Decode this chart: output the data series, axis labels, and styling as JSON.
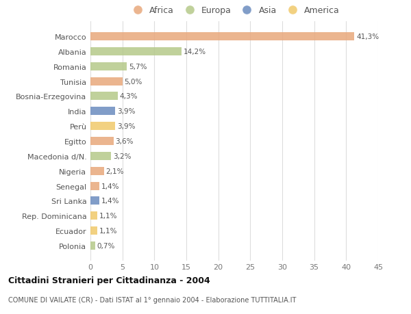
{
  "countries": [
    "Marocco",
    "Albania",
    "Romania",
    "Tunisia",
    "Bosnia-Erzegovina",
    "India",
    "Perù",
    "Egitto",
    "Macedonia d/N.",
    "Nigeria",
    "Senegal",
    "Sri Lanka",
    "Rep. Dominicana",
    "Ecuador",
    "Polonia"
  ],
  "values": [
    41.3,
    14.2,
    5.7,
    5.0,
    4.3,
    3.9,
    3.9,
    3.6,
    3.2,
    2.1,
    1.4,
    1.4,
    1.1,
    1.1,
    0.7
  ],
  "labels": [
    "41,3%",
    "14,2%",
    "5,7%",
    "5,0%",
    "4,3%",
    "3,9%",
    "3,9%",
    "3,6%",
    "3,2%",
    "2,1%",
    "1,4%",
    "1,4%",
    "1,1%",
    "1,1%",
    "0,7%"
  ],
  "continents": [
    "Africa",
    "Europa",
    "Europa",
    "Africa",
    "Europa",
    "Asia",
    "America",
    "Africa",
    "Europa",
    "Africa",
    "Africa",
    "Asia",
    "America",
    "America",
    "Europa"
  ],
  "colors": {
    "Africa": "#E8A87C",
    "Europa": "#B5C98A",
    "Asia": "#6B8CBF",
    "America": "#F0C96B"
  },
  "legend_order": [
    "Africa",
    "Europa",
    "Asia",
    "America"
  ],
  "xlim": [
    0,
    45
  ],
  "xticks": [
    0,
    5,
    10,
    15,
    20,
    25,
    30,
    35,
    40,
    45
  ],
  "title": "Cittadini Stranieri per Cittadinanza - 2004",
  "subtitle": "COMUNE DI VAILATE (CR) - Dati ISTAT al 1° gennaio 2004 - Elaborazione TUTTITALIA.IT",
  "background_color": "#ffffff",
  "grid_color": "#dddddd",
  "bar_height": 0.55
}
